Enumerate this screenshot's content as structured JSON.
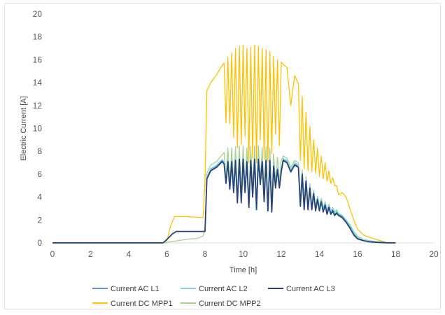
{
  "chart_data": {
    "type": "line",
    "title": "",
    "xlabel": "Time [h]",
    "ylabel": "Electric Current [A]",
    "xlim": [
      0,
      20
    ],
    "ylim": [
      0,
      20
    ],
    "x_ticks": [
      0,
      2,
      4,
      6,
      8,
      10,
      12,
      14,
      16,
      18,
      20
    ],
    "y_ticks": [
      0,
      2,
      4,
      6,
      8,
      10,
      12,
      14,
      16,
      18,
      20
    ],
    "x_tick_labels": [
      "0",
      "2",
      "4",
      "6",
      "8",
      "10",
      "12",
      "14",
      "16",
      "18",
      "20"
    ],
    "y_tick_labels": [
      "0",
      "2",
      "4",
      "6",
      "8",
      "10",
      "12",
      "14",
      "16",
      "18",
      "20"
    ],
    "grid": false,
    "legend_position": "bottom",
    "series": [
      {
        "name": "Current AC L1",
        "color": "#5b9bd5",
        "x": [
          0,
          5.8,
          6.0,
          6.3,
          6.5,
          8.0,
          8.1,
          8.3,
          8.6,
          8.9,
          9.0,
          9.1,
          9.2,
          9.3,
          9.4,
          9.5,
          9.6,
          9.7,
          9.8,
          9.9,
          10.0,
          10.1,
          10.2,
          10.3,
          10.4,
          10.5,
          10.6,
          10.7,
          10.8,
          10.9,
          11.0,
          11.1,
          11.2,
          11.3,
          11.4,
          11.5,
          11.6,
          11.7,
          11.8,
          11.9,
          12.0,
          12.1,
          12.3,
          12.5,
          12.7,
          12.9,
          13.0,
          13.1,
          13.2,
          13.3,
          13.4,
          13.5,
          13.6,
          13.7,
          13.8,
          13.9,
          14.0,
          14.1,
          14.2,
          14.3,
          14.4,
          14.5,
          14.6,
          14.7,
          14.8,
          14.9,
          15.0,
          15.2,
          15.4,
          15.6,
          15.8,
          16.0,
          16.3,
          16.6,
          17.0,
          17.4,
          17.6,
          18.0
        ],
        "values": [
          0,
          0,
          0.3,
          0.8,
          1.0,
          1.0,
          5.7,
          6.4,
          6.7,
          7.2,
          7.0,
          5.4,
          7.2,
          4.8,
          7.2,
          4.5,
          7.3,
          3.6,
          7.4,
          3.6,
          7.4,
          4.5,
          7.2,
          3.2,
          7.3,
          4.1,
          7.4,
          3.0,
          7.4,
          5.2,
          7.2,
          3.7,
          7.3,
          2.9,
          7.3,
          2.8,
          6.8,
          4.9,
          6.5,
          4.9,
          6.3,
          7.3,
          7.1,
          6.3,
          6.9,
          6.7,
          3.3,
          6.1,
          3.0,
          5.5,
          3.0,
          4.9,
          3.0,
          4.4,
          2.9,
          3.9,
          2.9,
          3.7,
          2.8,
          3.4,
          2.6,
          3.2,
          2.6,
          2.9,
          2.5,
          2.7,
          2.5,
          2.3,
          1.9,
          1.4,
          0.8,
          0.4,
          0.2,
          0.15,
          0.1,
          0.05,
          0,
          0
        ]
      },
      {
        "name": "Current AC L2",
        "color": "#7fd3f0",
        "x": [
          0,
          5.8,
          6.0,
          6.3,
          6.5,
          8.0,
          8.1,
          8.3,
          8.6,
          8.9,
          9.0,
          9.1,
          9.2,
          9.3,
          9.4,
          9.5,
          9.6,
          9.7,
          9.8,
          9.9,
          10.0,
          10.1,
          10.2,
          10.3,
          10.4,
          10.5,
          10.6,
          10.7,
          10.8,
          10.9,
          11.0,
          11.1,
          11.2,
          11.3,
          11.4,
          11.5,
          11.6,
          11.7,
          11.8,
          11.9,
          12.0,
          12.1,
          12.3,
          12.5,
          12.7,
          12.9,
          13.0,
          13.1,
          13.2,
          13.3,
          13.4,
          13.5,
          13.6,
          13.7,
          13.8,
          13.9,
          14.0,
          14.1,
          14.2,
          14.3,
          14.4,
          14.5,
          14.6,
          14.7,
          14.8,
          14.9,
          15.0,
          15.2,
          15.4,
          15.6,
          15.8,
          16.0,
          16.3,
          16.6,
          17.0,
          17.4,
          17.6,
          18.0
        ],
        "values": [
          0,
          0,
          0.3,
          0.8,
          1.0,
          1.0,
          5.8,
          6.5,
          6.8,
          7.3,
          7.1,
          5.6,
          7.3,
          5.0,
          7.3,
          4.7,
          7.4,
          3.8,
          7.5,
          3.8,
          7.5,
          4.7,
          7.3,
          3.4,
          7.4,
          4.3,
          7.5,
          3.2,
          7.5,
          5.4,
          7.3,
          3.9,
          7.4,
          3.1,
          7.4,
          3.0,
          6.9,
          5.1,
          6.6,
          5.1,
          6.4,
          7.4,
          7.2,
          6.4,
          7.0,
          6.8,
          3.5,
          6.2,
          3.2,
          5.6,
          3.2,
          5.0,
          3.2,
          4.5,
          3.1,
          4.0,
          3.1,
          3.8,
          3.0,
          3.5,
          2.8,
          3.3,
          2.8,
          3.0,
          2.7,
          2.8,
          2.6,
          2.4,
          2.0,
          1.5,
          0.9,
          0.5,
          0.25,
          0.15,
          0.1,
          0.05,
          0,
          0
        ]
      },
      {
        "name": "Current AC L3",
        "color": "#264478",
        "x": [
          0,
          5.8,
          6.0,
          6.3,
          6.5,
          8.0,
          8.1,
          8.3,
          8.6,
          8.9,
          9.0,
          9.1,
          9.2,
          9.3,
          9.4,
          9.5,
          9.6,
          9.7,
          9.8,
          9.9,
          10.0,
          10.1,
          10.2,
          10.3,
          10.4,
          10.5,
          10.6,
          10.7,
          10.8,
          10.9,
          11.0,
          11.1,
          11.2,
          11.3,
          11.4,
          11.5,
          11.6,
          11.7,
          11.8,
          11.9,
          12.0,
          12.1,
          12.3,
          12.5,
          12.7,
          12.9,
          13.0,
          13.1,
          13.2,
          13.3,
          13.4,
          13.5,
          13.6,
          13.7,
          13.8,
          13.9,
          14.0,
          14.1,
          14.2,
          14.3,
          14.4,
          14.5,
          14.6,
          14.7,
          14.8,
          14.9,
          15.0,
          15.2,
          15.4,
          15.6,
          15.8,
          16.0,
          16.3,
          16.6,
          17.0,
          17.4,
          17.6,
          18.0
        ],
        "values": [
          0,
          0,
          0.3,
          0.8,
          1.0,
          1.0,
          5.6,
          6.3,
          6.6,
          7.1,
          6.9,
          5.2,
          7.1,
          4.7,
          7.1,
          4.4,
          7.2,
          3.5,
          7.3,
          3.5,
          7.3,
          4.4,
          7.1,
          3.1,
          7.2,
          4.0,
          7.3,
          2.9,
          7.3,
          5.1,
          7.1,
          3.6,
          7.2,
          2.8,
          7.2,
          2.7,
          6.7,
          4.8,
          6.4,
          4.8,
          6.2,
          7.2,
          7.0,
          6.2,
          6.8,
          6.6,
          3.2,
          6.0,
          2.9,
          5.4,
          2.9,
          4.8,
          2.9,
          4.3,
          2.8,
          3.8,
          2.8,
          3.6,
          2.7,
          3.3,
          2.5,
          3.1,
          2.5,
          2.8,
          2.4,
          2.6,
          2.4,
          2.2,
          1.8,
          1.3,
          0.7,
          0.35,
          0.2,
          0.1,
          0.05,
          0.02,
          0,
          0
        ]
      },
      {
        "name": "Current DC MPP1",
        "color": "#ffc000",
        "x": [
          0,
          5.8,
          6.0,
          6.2,
          6.4,
          7.0,
          7.9,
          8.0,
          8.1,
          8.3,
          8.6,
          8.9,
          9.0,
          9.1,
          9.2,
          9.3,
          9.4,
          9.5,
          9.6,
          9.7,
          9.8,
          9.9,
          10.0,
          10.1,
          10.2,
          10.3,
          10.4,
          10.5,
          10.6,
          10.7,
          10.8,
          10.9,
          11.0,
          11.1,
          11.2,
          11.3,
          11.4,
          11.5,
          11.6,
          11.7,
          11.8,
          11.9,
          12.0,
          12.1,
          12.3,
          12.5,
          12.7,
          12.9,
          13.0,
          13.1,
          13.2,
          13.3,
          13.4,
          13.5,
          13.6,
          13.7,
          13.8,
          13.9,
          14.0,
          14.1,
          14.2,
          14.3,
          14.4,
          14.5,
          14.6,
          14.7,
          14.8,
          14.9,
          15.0,
          15.2,
          15.4,
          15.6,
          15.8,
          16.0,
          16.3,
          16.6,
          17.0,
          17.4,
          17.6,
          18.0
        ],
        "values": [
          0,
          0,
          0.2,
          1.5,
          2.3,
          2.3,
          2.2,
          5.5,
          13.3,
          14.0,
          14.7,
          15.5,
          15.7,
          10.5,
          16.2,
          10.4,
          16.6,
          9.2,
          17.0,
          8.3,
          17.2,
          8.6,
          17.3,
          9.3,
          17.0,
          7.0,
          17.1,
          7.4,
          17.3,
          7.0,
          17.2,
          9.0,
          17.0,
          7.3,
          16.9,
          7.1,
          16.7,
          7.8,
          16.3,
          9.5,
          16.0,
          8.5,
          15.8,
          15.6,
          15.3,
          12.0,
          14.6,
          13.9,
          7.2,
          12.8,
          6.5,
          11.4,
          6.3,
          10.2,
          6.2,
          9.0,
          6.1,
          8.3,
          5.8,
          7.6,
          5.6,
          7.0,
          5.4,
          6.3,
          5.2,
          5.7,
          5.0,
          5.0,
          4.2,
          4.4,
          4.0,
          3.0,
          2.0,
          1.2,
          0.7,
          0.5,
          0.3,
          0.1,
          0,
          0
        ]
      },
      {
        "name": "Current DC MPP2",
        "color": "#a9d18e",
        "x": [
          0,
          5.8,
          6.2,
          6.6,
          7.0,
          7.6,
          7.9,
          8.0,
          8.1,
          8.3,
          8.6,
          8.9,
          9.0,
          9.1,
          9.2,
          9.3,
          9.4,
          9.5,
          9.6,
          9.7,
          9.8,
          9.9,
          10.0,
          10.1,
          10.2,
          10.3,
          10.4,
          10.5,
          10.6,
          10.7,
          10.8,
          10.9,
          11.0,
          11.1,
          11.2,
          11.3,
          11.4,
          11.5,
          11.6,
          11.7,
          11.8,
          11.9,
          12.0,
          12.1,
          12.3,
          12.5,
          12.7,
          12.9,
          13.0,
          13.1,
          13.2,
          13.3,
          13.4,
          13.5,
          13.6,
          13.7,
          13.8,
          13.9,
          14.0,
          14.1,
          14.2,
          14.3,
          14.4,
          14.5,
          14.6,
          14.7,
          14.8,
          14.9,
          15.0,
          15.2,
          15.4,
          15.6,
          15.8,
          16.0,
          16.3,
          16.6,
          17.0,
          17.4,
          17.6,
          18.0
        ],
        "values": [
          0,
          0,
          0.1,
          0.2,
          0.3,
          0.4,
          0.6,
          1.2,
          6.1,
          6.8,
          7.1,
          7.7,
          7.9,
          5.6,
          8.3,
          5.1,
          8.3,
          4.9,
          8.4,
          4.0,
          8.5,
          4.0,
          8.5,
          4.9,
          8.3,
          3.6,
          8.4,
          4.5,
          8.5,
          3.4,
          8.5,
          5.6,
          8.3,
          4.1,
          8.4,
          3.3,
          8.3,
          3.2,
          7.8,
          5.3,
          7.5,
          5.3,
          7.2,
          7.6,
          7.4,
          6.6,
          7.2,
          7.0,
          3.7,
          6.4,
          3.4,
          5.8,
          3.4,
          5.2,
          3.3,
          4.6,
          3.2,
          4.1,
          3.2,
          3.9,
          3.1,
          3.6,
          2.9,
          3.4,
          2.8,
          3.1,
          2.7,
          2.9,
          2.6,
          2.4,
          2.0,
          1.6,
          1.0,
          0.6,
          0.3,
          0.2,
          0.1,
          0.05,
          0,
          0
        ]
      }
    ]
  }
}
